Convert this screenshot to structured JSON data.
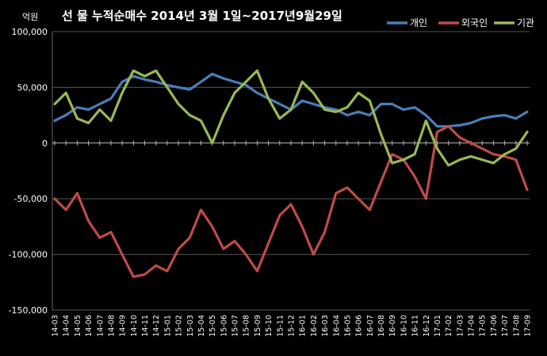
{
  "chart_data": {
    "type": "line",
    "title": "선 물 누적순매수 2014년 3월 1일~2017년9월29일",
    "ylabel": "억원",
    "xlabel": "",
    "ylim": [
      -150000,
      100000
    ],
    "yticks": [
      100000,
      50000,
      0,
      -50000,
      -100000,
      -150000
    ],
    "ytick_labels": [
      "100,000",
      "50,000",
      "0",
      "-50,000",
      "-100,000",
      "-150,000"
    ],
    "categories": [
      "14-03",
      "14-04",
      "14-05",
      "14-06",
      "14-07",
      "14-08",
      "14-09",
      "14-10",
      "14-11",
      "14-12",
      "15-01",
      "15-02",
      "15-03",
      "15-04",
      "15-05",
      "15-06",
      "15-07",
      "15-08",
      "15-09",
      "15-10",
      "15-11",
      "15-12",
      "16-01",
      "16-02",
      "16-03",
      "16-04",
      "16-05",
      "16-06",
      "16-07",
      "16-08",
      "16-09",
      "16-10",
      "16-11",
      "16-12",
      "17-01",
      "17-02",
      "17-03",
      "17-04",
      "17-05",
      "17-06",
      "17-07",
      "17-08",
      "17-09"
    ],
    "grid": true,
    "legend_position": "top-right",
    "series": [
      {
        "name": "개인",
        "color": "#4a7ebb",
        "values": [
          20000,
          25000,
          32000,
          30000,
          35000,
          40000,
          55000,
          60000,
          57000,
          55000,
          52000,
          50000,
          48000,
          55000,
          62000,
          58000,
          55000,
          52000,
          45000,
          40000,
          35000,
          30000,
          38000,
          35000,
          32000,
          30000,
          25000,
          28000,
          25000,
          35000,
          35000,
          30000,
          32000,
          25000,
          15000,
          15000,
          16000,
          18000,
          22000,
          24000,
          25000,
          22000,
          28000
        ]
      },
      {
        "name": "외국인",
        "color": "#be4b48",
        "values": [
          -50000,
          -60000,
          -45000,
          -70000,
          -85000,
          -80000,
          -100000,
          -120000,
          -118000,
          -110000,
          -115000,
          -95000,
          -85000,
          -60000,
          -75000,
          -95000,
          -88000,
          -100000,
          -115000,
          -90000,
          -65000,
          -55000,
          -75000,
          -100000,
          -80000,
          -45000,
          -40000,
          -50000,
          -60000,
          -35000,
          -10000,
          -15000,
          -30000,
          -50000,
          10000,
          15000,
          5000,
          0,
          -5000,
          -10000,
          -12000,
          -15000,
          -42000
        ]
      },
      {
        "name": "기관",
        "color": "#98b954",
        "values": [
          35000,
          45000,
          22000,
          18000,
          30000,
          20000,
          45000,
          65000,
          60000,
          65000,
          50000,
          35000,
          25000,
          20000,
          0,
          25000,
          45000,
          55000,
          65000,
          40000,
          22000,
          30000,
          55000,
          45000,
          30000,
          28000,
          32000,
          45000,
          38000,
          8000,
          -18000,
          -15000,
          -10000,
          20000,
          -5000,
          -20000,
          -15000,
          -12000,
          -15000,
          -18000,
          -10000,
          -5000,
          10000
        ]
      }
    ]
  }
}
